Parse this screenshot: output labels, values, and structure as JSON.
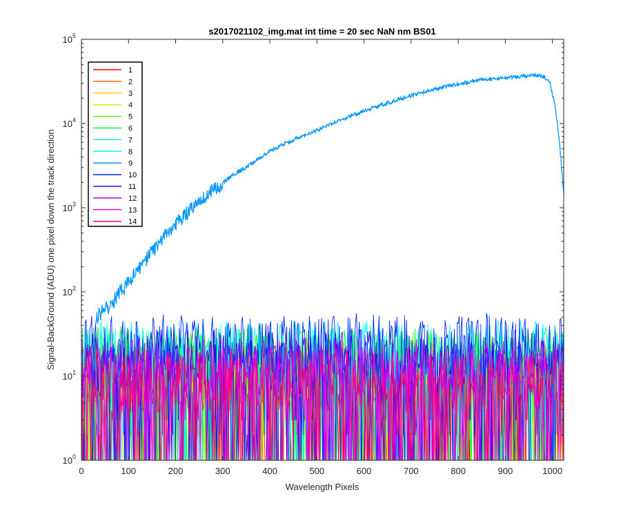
{
  "chart_data": {
    "type": "line",
    "title": "s2017021102_img.mat int time = 20 sec  NaN nm BS01",
    "xlabel": "Wavelength Pixels",
    "ylabel": "Signal-BackGround (ADU) one pixel down the track direction",
    "xlim": [
      0,
      1024
    ],
    "ylim": [
      1,
      100000
    ],
    "yscale": "log",
    "grid": false,
    "legend_position": "top-left",
    "x_ticks": [
      0,
      100,
      200,
      300,
      400,
      500,
      600,
      700,
      800,
      900,
      1000
    ],
    "x_tick_labels": [
      "0",
      "100",
      "200",
      "300",
      "400",
      "500",
      "600",
      "700",
      "800",
      "900",
      "1000"
    ],
    "y_ticks": [
      1,
      10,
      100,
      1000,
      10000,
      100000
    ],
    "y_tick_labels": [
      {
        "base": "10",
        "exp": "0"
      },
      {
        "base": "10",
        "exp": "1"
      },
      {
        "base": "10",
        "exp": "2"
      },
      {
        "base": "10",
        "exp": "3"
      },
      {
        "base": "10",
        "exp": "4"
      },
      {
        "base": "10",
        "exp": "5"
      }
    ],
    "series": [
      {
        "name": "1",
        "color": "#ff0000",
        "kind": "noise",
        "typical": 9,
        "ceiling": 40
      },
      {
        "name": "2",
        "color": "#ff6a00",
        "kind": "noise",
        "typical": 9,
        "ceiling": 42
      },
      {
        "name": "3",
        "color": "#ffcc00",
        "kind": "noise",
        "typical": 10,
        "ceiling": 45
      },
      {
        "name": "4",
        "color": "#c6ff00",
        "kind": "noise",
        "typical": 11,
        "ceiling": 50
      },
      {
        "name": "5",
        "color": "#55ff00",
        "kind": "noise",
        "typical": 13,
        "ceiling": 60
      },
      {
        "name": "6",
        "color": "#00ff3c",
        "kind": "noise",
        "typical": 15,
        "ceiling": 65
      },
      {
        "name": "7",
        "color": "#00ffa8",
        "kind": "noise",
        "typical": 16,
        "ceiling": 68
      },
      {
        "name": "8",
        "color": "#00ffff",
        "kind": "noise",
        "typical": 18,
        "ceiling": 70
      },
      {
        "name": "9",
        "color": "#0096ff",
        "kind": "curve",
        "x": [
          30,
          40,
          50,
          60,
          70,
          80,
          90,
          100,
          110,
          120,
          130,
          140,
          150,
          160,
          170,
          180,
          200,
          220,
          250,
          280,
          300,
          330,
          360,
          400,
          430,
          460,
          500,
          550,
          600,
          650,
          700,
          750,
          800,
          850,
          900,
          950,
          970,
          985,
          995,
          1005,
          1015,
          1024
        ],
        "y": [
          48,
          55,
          60,
          70,
          80,
          95,
          110,
          130,
          150,
          180,
          210,
          250,
          300,
          350,
          420,
          500,
          650,
          800,
          1200,
          1600,
          2000,
          2600,
          3300,
          4700,
          5700,
          6800,
          8300,
          11000,
          14000,
          17500,
          21500,
          25500,
          29500,
          33000,
          35000,
          37000,
          37500,
          35000,
          30000,
          17000,
          6000,
          1500
        ]
      },
      {
        "name": "10",
        "color": "#0028ff",
        "kind": "noise",
        "typical": 22,
        "ceiling": 60
      },
      {
        "name": "11",
        "color": "#3c00ff",
        "kind": "noise",
        "typical": 14,
        "ceiling": 45
      },
      {
        "name": "12",
        "color": "#aa00ff",
        "kind": "noise",
        "typical": 11,
        "ceiling": 40
      },
      {
        "name": "13",
        "color": "#ff00e6",
        "kind": "noise",
        "typical": 9,
        "ceiling": 30
      },
      {
        "name": "14",
        "color": "#ff0064",
        "kind": "noise",
        "typical": 8,
        "ceiling": 28
      }
    ]
  }
}
